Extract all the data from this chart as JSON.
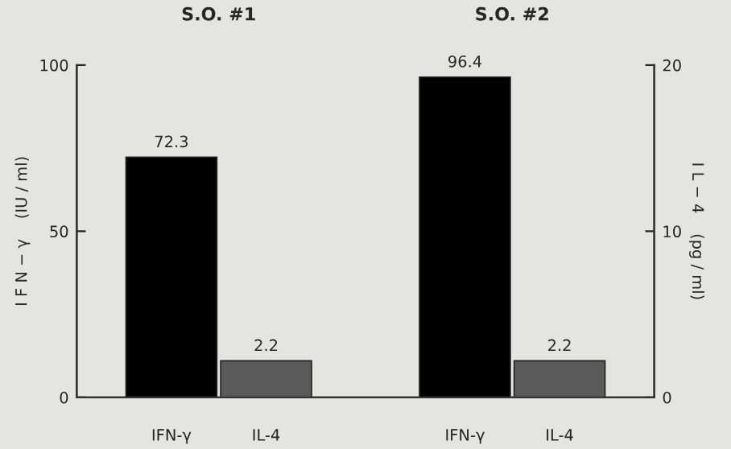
{
  "chart_data": {
    "type": "bar",
    "categories": [
      "IFN-γ",
      "IL-4",
      "IFN-γ",
      "IL-4"
    ],
    "series": [
      {
        "color": "#000000",
        "values": [
          72.3,
          null,
          96.4,
          null
        ]
      },
      {
        "color": "#5a5a5a",
        "values": [
          null,
          2.2,
          null,
          2.2
        ],
        "axis": "y2"
      }
    ],
    "ylabel": "I F N − γ    (IU / ml)",
    "y2label": "I L − 4    (pg / ml)",
    "ylim": [
      0,
      100
    ],
    "yticks": [
      0,
      50,
      100
    ],
    "y2lim": [
      0,
      20
    ],
    "y2ticks": [
      0,
      10,
      20
    ],
    "data_labels": true,
    "grid": false,
    "legend": false,
    "annotations": [
      "S.O. #1",
      "S.O. #2"
    ]
  }
}
